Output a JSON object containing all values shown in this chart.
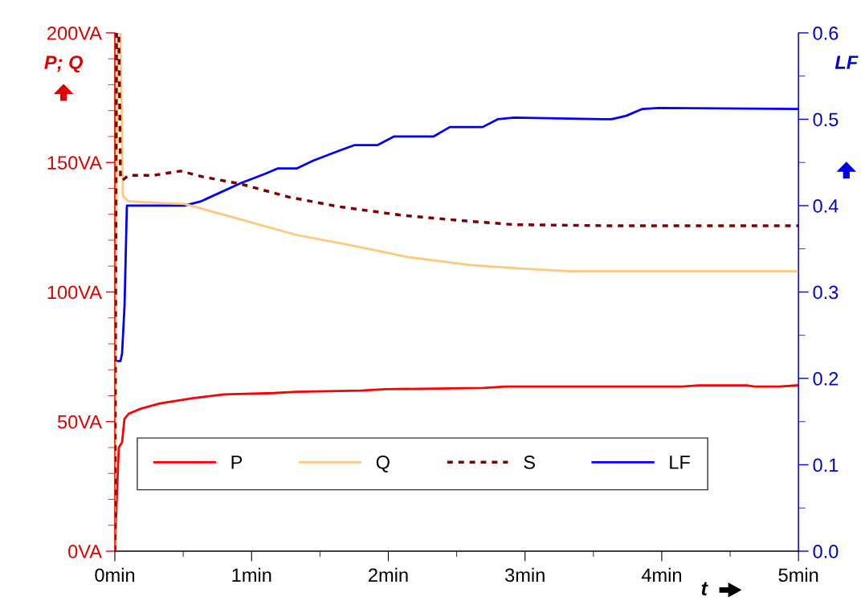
{
  "chart_data": {
    "type": "line",
    "xlabel": "t",
    "ylabel": "P; Q",
    "y2label": "LF",
    "xlim": [
      0,
      5
    ],
    "xticks": [
      {
        "value": 0,
        "label": "0min"
      },
      {
        "value": 1,
        "label": "1min"
      },
      {
        "value": 2,
        "label": "2min"
      },
      {
        "value": 3,
        "label": "3min"
      },
      {
        "value": 4,
        "label": "4min"
      },
      {
        "value": 5,
        "label": "5min"
      }
    ],
    "ylim": [
      0,
      200
    ],
    "yticks": [
      {
        "value": 0,
        "label": "0VA"
      },
      {
        "value": 50,
        "label": "50VA"
      },
      {
        "value": 100,
        "label": "100VA"
      },
      {
        "value": 150,
        "label": "150VA"
      },
      {
        "value": 200,
        "label": "200VA"
      }
    ],
    "y2lim": [
      0,
      0.6
    ],
    "y2ticks": [
      {
        "value": 0,
        "label": "0.0"
      },
      0.1,
      0.2,
      0.3,
      0.4,
      0.5,
      0.6
    ],
    "grid": false,
    "legend": "bottom",
    "marker": "none",
    "series": [
      {
        "name": "P",
        "color": "#ff0000",
        "line_style": "solid",
        "x": [
          0,
          0.018,
          0.029,
          0.053,
          0.07,
          0.1,
          0.19,
          0.33,
          0.57,
          0.8,
          1.16,
          1.33,
          1.8,
          1.98,
          2.69,
          2.86,
          4.15,
          4.27,
          4.62,
          4.68,
          4.86,
          5
        ],
        "values": [
          0,
          26,
          40,
          42,
          51,
          53,
          55,
          57,
          59,
          60.5,
          61,
          61.5,
          62,
          62.5,
          63,
          63.5,
          63.5,
          64,
          64,
          63.5,
          63.5,
          64
        ]
      },
      {
        "name": "Q",
        "color": "#ffc87a",
        "line_style": "solid",
        "x": [
          0,
          0.018,
          0.041,
          0.059,
          0.1,
          0.51,
          0.92,
          1.33,
          1.73,
          2.14,
          2.6,
          2.98,
          3.33,
          5
        ],
        "values": [
          0,
          200,
          200,
          137,
          135,
          134,
          128,
          122,
          118,
          113.5,
          110.4,
          109,
          108,
          108
        ]
      },
      {
        "name": "S",
        "color": "#800000",
        "line_style": "dashed",
        "x": [
          0,
          0.012,
          0.029,
          0.041,
          0.053,
          0.1,
          0.28,
          0.48,
          0.64,
          0.92,
          1.27,
          1.63,
          2.1,
          2.57,
          2.92,
          3.57,
          5
        ],
        "values": [
          0,
          200,
          200,
          145,
          143,
          145,
          145,
          146.7,
          144.5,
          141.7,
          136.7,
          133,
          129.6,
          127.4,
          126,
          125.6,
          125.6
        ]
      },
      {
        "name": "LF",
        "color": "#0000ff",
        "line_style": "solid",
        "axis": "y2",
        "x": [
          0.018,
          0.041,
          0.053,
          0.071,
          0.082,
          0.088,
          0.1,
          0.51,
          0.63,
          0.92,
          1.1,
          1.19,
          1.33,
          1.45,
          1.63,
          1.75,
          1.92,
          2.04,
          2.33,
          2.45,
          2.69,
          2.8,
          2.92,
          3.57,
          3.63,
          3.74,
          3.86,
          3.98,
          5
        ],
        "values": [
          0.22,
          0.22,
          0.229,
          0.285,
          0.36,
          0.4,
          0.4,
          0.4,
          0.405,
          0.426,
          0.437,
          0.443,
          0.443,
          0.452,
          0.463,
          0.47,
          0.47,
          0.48,
          0.48,
          0.491,
          0.491,
          0.5,
          0.502,
          0.5,
          0.5,
          0.504,
          0.512,
          0.513,
          0.512
        ]
      }
    ]
  }
}
